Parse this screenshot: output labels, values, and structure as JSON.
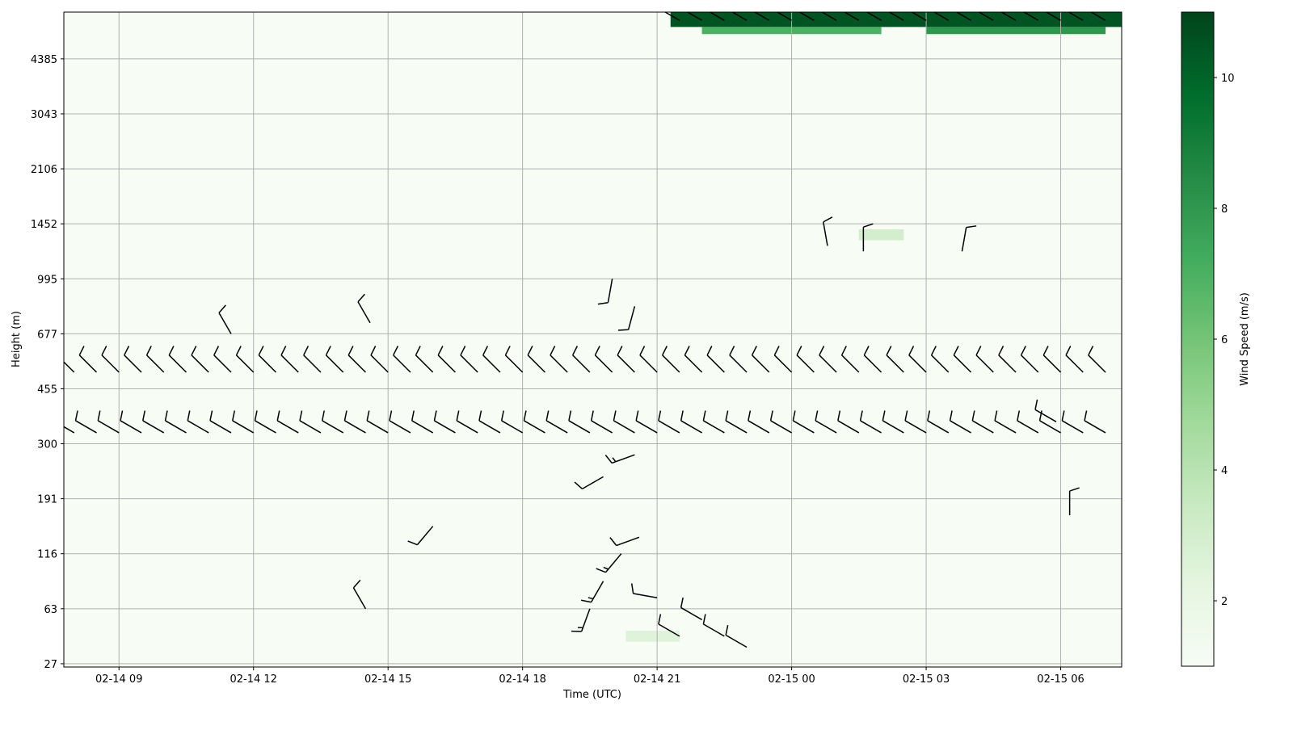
{
  "chart_data": {
    "type": "barbs",
    "xlabel": "Time (UTC)",
    "ylabel": "Height (m)",
    "colorbar_label": "Wind Speed (m/s)",
    "xlim": [
      7.77,
      31.36
    ],
    "xticks": [
      {
        "value": 9,
        "label": "02-14 09"
      },
      {
        "value": 12,
        "label": "02-14 12"
      },
      {
        "value": 15,
        "label": "02-14 15"
      },
      {
        "value": 18,
        "label": "02-14 18"
      },
      {
        "value": 21,
        "label": "02-14 21"
      },
      {
        "value": 24,
        "label": "02-15 00"
      },
      {
        "value": 27,
        "label": "02-15 03"
      },
      {
        "value": 30,
        "label": "02-15 06"
      }
    ],
    "ylim": [
      -0.06,
      11.85
    ],
    "yticks": [
      {
        "value": 0,
        "label": "27"
      },
      {
        "value": 1,
        "label": "63"
      },
      {
        "value": 2,
        "label": "116"
      },
      {
        "value": 3,
        "label": "191"
      },
      {
        "value": 4,
        "label": "300"
      },
      {
        "value": 5,
        "label": "455"
      },
      {
        "value": 6,
        "label": "677"
      },
      {
        "value": 7,
        "label": "995"
      },
      {
        "value": 8,
        "label": "1452"
      },
      {
        "value": 9,
        "label": "2106"
      },
      {
        "value": 10,
        "label": "3043"
      },
      {
        "value": 11,
        "label": "4385"
      }
    ],
    "grid": true,
    "colormap": [
      "#f7fcf5",
      "#e5f5e0",
      "#c7e9c0",
      "#a1d99b",
      "#74c476",
      "#41ab5d",
      "#238b45",
      "#006d2c",
      "#00441b"
    ],
    "clim": [
      1.0,
      11.0
    ],
    "cticks": [
      2,
      4,
      6,
      8,
      10
    ],
    "background": 1.0,
    "barb_color": "#000000",
    "cells": {
      "x0": [
        21.3,
        22.0,
        27.0,
        20.3,
        25.5
      ],
      "x1": [
        31.4,
        26.0,
        31.0,
        21.5,
        26.5
      ],
      "y0": [
        11.58,
        11.45,
        11.45,
        0.4,
        7.7
      ],
      "y1": [
        11.85,
        11.58,
        11.58,
        0.6,
        7.9
      ],
      "values": [
        10.5,
        7,
        8,
        2.5,
        3
      ]
    },
    "barbs": {
      "x": [
        8,
        8.5,
        9,
        9.5,
        10,
        10.5,
        11,
        11.5,
        12,
        12.5,
        13,
        13.5,
        14,
        14.5,
        15,
        15.5,
        16,
        16.5,
        17,
        17.5,
        18,
        18.5,
        19,
        19.5,
        20,
        20.5,
        21,
        21.5,
        22,
        22.5,
        23,
        23.5,
        24,
        24.5,
        25,
        25.5,
        26,
        26.5,
        27,
        27.5,
        28,
        28.5,
        29,
        29.5,
        30,
        30.5,
        31,
        8,
        8.5,
        9,
        9.5,
        10,
        10.5,
        11,
        11.5,
        12,
        12.5,
        13,
        13.5,
        14,
        14.5,
        15,
        15.5,
        16,
        16.5,
        17,
        17.5,
        18,
        18.5,
        19,
        19.5,
        20,
        20.5,
        21,
        21.5,
        22,
        22.5,
        23,
        23.5,
        24,
        24.5,
        25,
        25.5,
        26,
        26.5,
        27,
        27.5,
        28,
        28.5,
        29,
        29.5,
        30,
        30.5,
        31,
        21.5,
        22,
        22.5,
        23,
        23.5,
        24,
        24.5,
        25,
        25.5,
        26,
        26.5,
        27,
        27.5,
        28,
        28.5,
        29,
        29.5,
        30,
        30.5,
        31,
        19.5,
        19.8,
        20.2,
        20.6,
        21,
        21.5,
        22,
        22.5,
        23,
        20,
        20.5,
        19.8,
        20.5,
        24.8,
        25.6,
        27.8,
        14.5,
        16,
        11.5,
        14.6,
        29.9,
        30.2
      ],
      "y": [
        5.3,
        5.3,
        5.3,
        5.3,
        5.3,
        5.3,
        5.3,
        5.3,
        5.3,
        5.3,
        5.3,
        5.3,
        5.3,
        5.3,
        5.3,
        5.3,
        5.3,
        5.3,
        5.3,
        5.3,
        5.3,
        5.3,
        5.3,
        5.3,
        5.3,
        5.3,
        5.3,
        5.3,
        5.3,
        5.3,
        5.3,
        5.3,
        5.3,
        5.3,
        5.3,
        5.3,
        5.3,
        5.3,
        5.3,
        5.3,
        5.3,
        5.3,
        5.3,
        5.3,
        5.3,
        5.3,
        5.3,
        4.2,
        4.2,
        4.2,
        4.2,
        4.2,
        4.2,
        4.2,
        4.2,
        4.2,
        4.2,
        4.2,
        4.2,
        4.2,
        4.2,
        4.2,
        4.2,
        4.2,
        4.2,
        4.2,
        4.2,
        4.2,
        4.2,
        4.2,
        4.2,
        4.2,
        4.2,
        4.2,
        4.2,
        4.2,
        4.2,
        4.2,
        4.2,
        4.2,
        4.2,
        4.2,
        4.2,
        4.2,
        4.2,
        4.2,
        4.2,
        4.2,
        4.2,
        4.2,
        4.2,
        4.2,
        4.2,
        4.2,
        11.7,
        11.7,
        11.7,
        11.7,
        11.7,
        11.7,
        11.7,
        11.7,
        11.7,
        11.7,
        11.7,
        11.7,
        11.7,
        11.7,
        11.7,
        11.7,
        11.7,
        11.7,
        11.7,
        11.7,
        1,
        1.5,
        2,
        2.3,
        1.2,
        0.5,
        0.8,
        0.5,
        0.3,
        7,
        6.5,
        3.4,
        3.8,
        7.6,
        7.5,
        7.5,
        1,
        2.5,
        6,
        6.2,
        4.4,
        2.7
      ],
      "speed": [
        10,
        10,
        10,
        10,
        10,
        10,
        10,
        10,
        10,
        10,
        10,
        10,
        10,
        10,
        10,
        10,
        10,
        10,
        10,
        10,
        10,
        10,
        10,
        10,
        10,
        10,
        10,
        10,
        10,
        10,
        10,
        10,
        10,
        10,
        10,
        10,
        10,
        10,
        10,
        10,
        10,
        10,
        10,
        10,
        10,
        10,
        10,
        10,
        10,
        10,
        10,
        10,
        10,
        10,
        10,
        10,
        10,
        10,
        10,
        10,
        10,
        10,
        10,
        10,
        10,
        10,
        10,
        10,
        10,
        10,
        10,
        10,
        10,
        10,
        10,
        10,
        10,
        10,
        10,
        10,
        10,
        10,
        10,
        10,
        10,
        10,
        10,
        10,
        10,
        10,
        10,
        10,
        10,
        10,
        25,
        25,
        25,
        25,
        25,
        25,
        55,
        25,
        25,
        25,
        25,
        25,
        25,
        25,
        25,
        25,
        25,
        55,
        25,
        25,
        15,
        15,
        15,
        10,
        10,
        10,
        10,
        10,
        10,
        10,
        10,
        10,
        15,
        10,
        10,
        10,
        10,
        10,
        10,
        10,
        10,
        10
      ],
      "direction": [
        315,
        315,
        315,
        315,
        315,
        315,
        315,
        315,
        315,
        315,
        315,
        315,
        315,
        315,
        315,
        315,
        315,
        315,
        315,
        315,
        315,
        315,
        315,
        315,
        315,
        315,
        315,
        315,
        315,
        315,
        315,
        315,
        315,
        315,
        315,
        315,
        315,
        315,
        315,
        315,
        315,
        315,
        315,
        315,
        315,
        315,
        315,
        300,
        300,
        300,
        300,
        300,
        300,
        300,
        300,
        300,
        300,
        300,
        300,
        300,
        300,
        300,
        300,
        300,
        300,
        300,
        300,
        300,
        300,
        300,
        300,
        300,
        300,
        300,
        300,
        300,
        300,
        300,
        300,
        300,
        300,
        300,
        300,
        300,
        300,
        300,
        300,
        300,
        300,
        300,
        300,
        300,
        300,
        300,
        300,
        300,
        300,
        300,
        300,
        300,
        300,
        300,
        300,
        300,
        300,
        300,
        300,
        300,
        300,
        300,
        300,
        300,
        300,
        300,
        200,
        210,
        220,
        250,
        280,
        300,
        300,
        300,
        300,
        190,
        195,
        240,
        250,
        350,
        0,
        10,
        330,
        220,
        330,
        330,
        300,
        360
      ]
    }
  }
}
